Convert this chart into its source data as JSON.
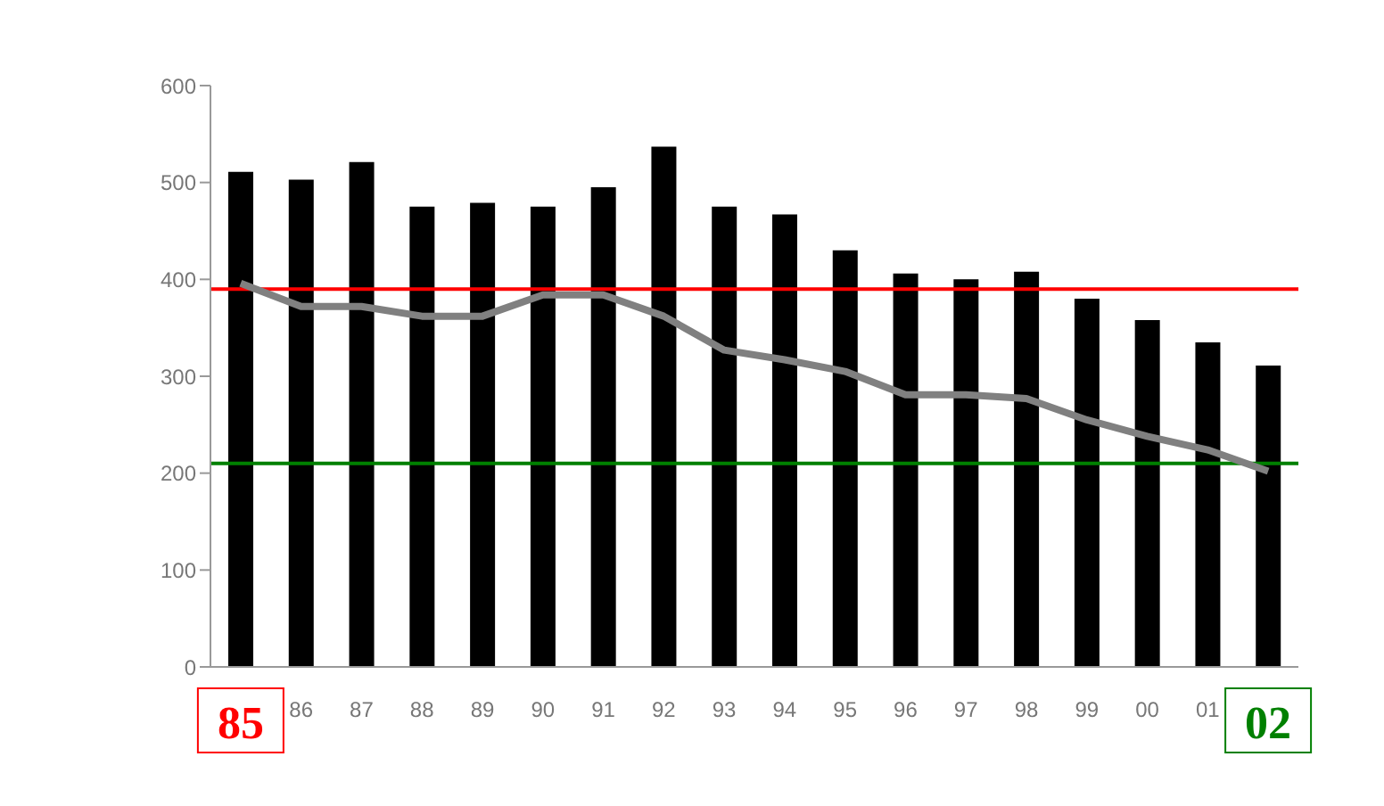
{
  "chart_data": {
    "type": "bar",
    "categories": [
      "85",
      "86",
      "87",
      "88",
      "89",
      "90",
      "91",
      "92",
      "93",
      "94",
      "95",
      "96",
      "97",
      "98",
      "99",
      "00",
      "01",
      "02"
    ],
    "series": [
      {
        "color": "#000000",
        "values": [
          511,
          503,
          521,
          475,
          479,
          475,
          495,
          537,
          475,
          467,
          430,
          406,
          400,
          408,
          380,
          358,
          335,
          311
        ]
      },
      {
        "type": "line",
        "color": "#808080",
        "values": [
          396,
          372,
          372,
          362,
          362,
          384,
          384,
          362,
          327,
          317,
          305,
          281,
          281,
          277,
          255,
          238,
          224,
          202
        ]
      }
    ],
    "ylim": [
      0,
      600
    ],
    "yticks": [
      0,
      100,
      200,
      300,
      400,
      500,
      600
    ],
    "grid": false,
    "legend": false,
    "marker": "none",
    "line_style": "solid",
    "ref_lines": [
      {
        "axis": "y",
        "value": 390,
        "color": "#ff0000"
      },
      {
        "axis": "y",
        "value": 210,
        "color": "#008000"
      }
    ]
  }
}
